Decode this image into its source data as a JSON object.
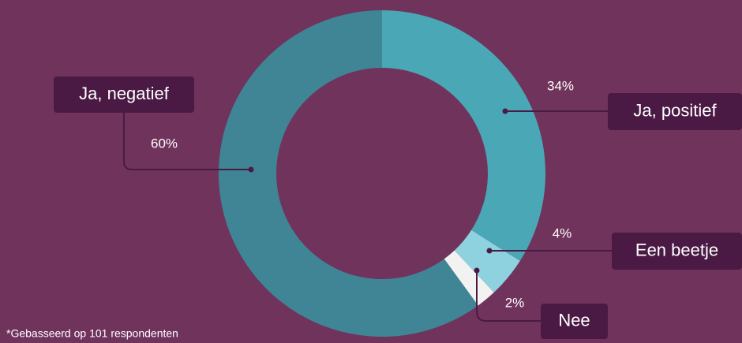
{
  "chart_data": {
    "type": "donut",
    "categories": [
      "Ja, positief",
      "Een beetje",
      "Nee",
      "Ja, negatief"
    ],
    "values": [
      34,
      4,
      2,
      60
    ],
    "value_labels": [
      "34%",
      "4%",
      "2%",
      "60%"
    ],
    "colors": [
      "#4aa7b5",
      "#8ed2df",
      "#f2f2f2",
      "#3f8596"
    ],
    "footnote": "*Gebasseerd op 101 respondenten"
  }
}
